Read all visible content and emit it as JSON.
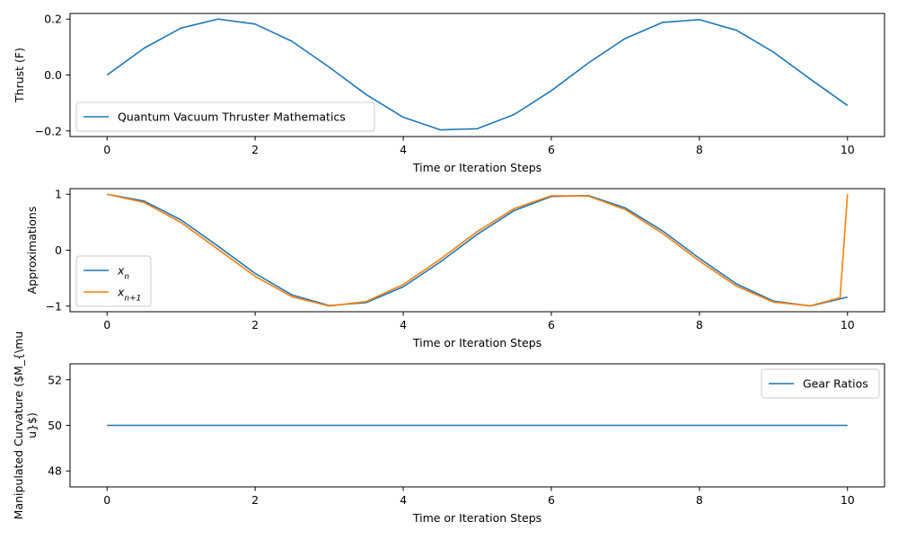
{
  "colors": {
    "series1": "#1f77b4",
    "series2": "#ff7f0e"
  },
  "chart_data": [
    {
      "type": "line",
      "title": "",
      "xlabel": "Time or Iteration Steps",
      "ylabel": "Thrust (F)",
      "xlim": [
        -0.5,
        10.5
      ],
      "ylim": [
        -0.22,
        0.22
      ],
      "xticks": [
        0,
        2,
        4,
        6,
        8,
        10
      ],
      "xtick_labels": [
        "0",
        "2",
        "4",
        "6",
        "8",
        "10"
      ],
      "yticks": [
        -0.2,
        0.0,
        0.2
      ],
      "ytick_labels": [
        "−0.2",
        "0.0",
        "0.2"
      ],
      "legend_position": "lower-left",
      "series": [
        {
          "name": "Quantum Vacuum Thruster Mathematics",
          "color": "#1f77b4",
          "x": [
            0,
            0.5,
            1.0,
            1.5,
            2.0,
            2.5,
            3.0,
            3.5,
            4.0,
            4.5,
            5.0,
            5.5,
            6.0,
            6.5,
            7.0,
            7.5,
            8.0,
            8.5,
            9.0,
            9.5,
            10.0
          ],
          "y": [
            0,
            0.096,
            0.168,
            0.2,
            0.182,
            0.12,
            0.028,
            -0.07,
            -0.151,
            -0.196,
            -0.192,
            -0.141,
            -0.056,
            0.043,
            0.131,
            0.188,
            0.198,
            0.16,
            0.082,
            -0.015,
            -0.109
          ]
        }
      ]
    },
    {
      "type": "line",
      "title": "",
      "xlabel": "Time or Iteration Steps",
      "ylabel": "Approximations",
      "xlim": [
        -0.5,
        10.5
      ],
      "ylim": [
        -1.1,
        1.1
      ],
      "xticks": [
        0,
        2,
        4,
        6,
        8,
        10
      ],
      "xtick_labels": [
        "0",
        "2",
        "4",
        "6",
        "8",
        "10"
      ],
      "yticks": [
        -1,
        0,
        1
      ],
      "ytick_labels": [
        "−1",
        "0",
        "1"
      ],
      "legend_position": "lower-left",
      "series": [
        {
          "name": "x",
          "name_sub": "n",
          "color": "#1f77b4",
          "x": [
            0,
            0.5,
            1.0,
            1.5,
            2.0,
            2.5,
            3.0,
            3.5,
            4.0,
            4.5,
            5.0,
            5.5,
            6.0,
            6.5,
            7.0,
            7.5,
            8.0,
            8.5,
            9.0,
            9.5,
            10.0
          ],
          "y": [
            1,
            0.878,
            0.54,
            0.071,
            -0.416,
            -0.801,
            -0.99,
            -0.936,
            -0.654,
            -0.211,
            0.284,
            0.709,
            0.96,
            0.977,
            0.754,
            0.347,
            -0.146,
            -0.602,
            -0.911,
            -0.997,
            -0.839
          ]
        },
        {
          "name": "x",
          "name_sub": "n+1",
          "color": "#ff7f0e",
          "x": [
            0,
            0.5,
            1.0,
            1.5,
            2.0,
            2.5,
            3.0,
            3.5,
            4.0,
            4.5,
            5.0,
            5.5,
            6.0,
            6.5,
            7.0,
            7.5,
            8.0,
            8.5,
            9.0,
            9.5,
            9.9,
            10.0
          ],
          "y": [
            1,
            0.854,
            0.494,
            0.015,
            -0.468,
            -0.834,
            -0.998,
            -0.918,
            -0.614,
            -0.161,
            0.333,
            0.744,
            0.973,
            0.968,
            0.725,
            0.303,
            -0.194,
            -0.641,
            -0.929,
            -0.994,
            -0.85,
            1
          ]
        }
      ]
    },
    {
      "type": "line",
      "title": "",
      "xlabel": "Time or Iteration Steps",
      "ylabel_lines": [
        "Manipulated Curvature ($M_{\\mu",
        "u}$)"
      ],
      "xlim": [
        -0.5,
        10.5
      ],
      "ylim": [
        47.3,
        52.7
      ],
      "xticks": [
        0,
        2,
        4,
        6,
        8,
        10
      ],
      "xtick_labels": [
        "0",
        "2",
        "4",
        "6",
        "8",
        "10"
      ],
      "yticks": [
        48,
        50,
        52
      ],
      "ytick_labels": [
        "48",
        "50",
        "52"
      ],
      "legend_position": "upper-right",
      "series": [
        {
          "name": "Gear Ratios",
          "color": "#1f77b4",
          "x": [
            0,
            10
          ],
          "y": [
            50,
            50
          ]
        }
      ]
    }
  ]
}
